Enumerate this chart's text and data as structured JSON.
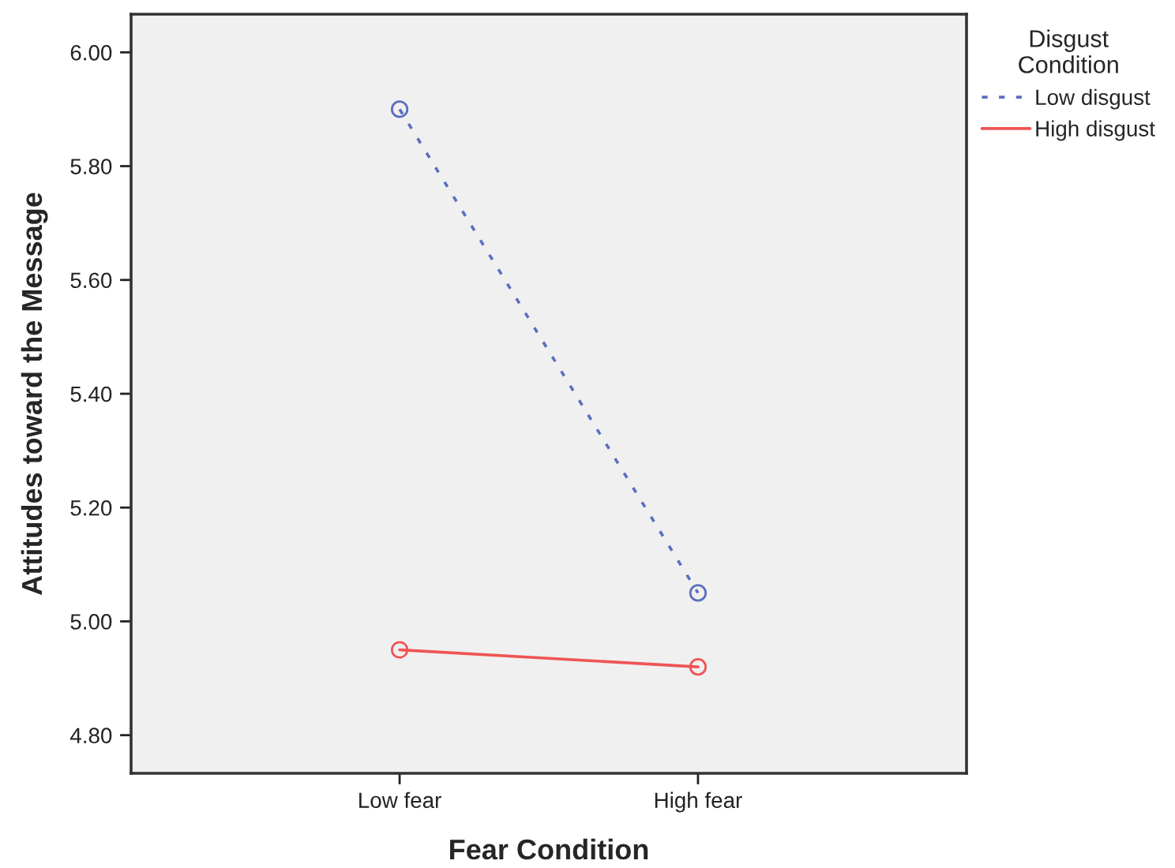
{
  "chart_data": {
    "type": "line",
    "xlabel": "Fear Condition",
    "ylabel": "Attitudes toward the Message",
    "legend_title": "Disgust\nCondition",
    "categories": [
      "Low fear",
      "High fear"
    ],
    "series": [
      {
        "name": "Low disgust",
        "color": "#5b6fc0",
        "values": [
          5.9,
          5.05
        ],
        "line_style": "dotted"
      },
      {
        "name": "High disgust",
        "color": "#f05454",
        "values": [
          4.95,
          4.92
        ],
        "line_style": "solid"
      }
    ],
    "ylim": [
      4.733,
      6.067
    ],
    "yticks": [
      {
        "value": 4.8,
        "label": "4.80"
      },
      {
        "value": 5.0,
        "label": "5.00"
      },
      {
        "value": 5.2,
        "label": "5.20"
      },
      {
        "value": 5.4,
        "label": "5.40"
      },
      {
        "value": 5.6,
        "label": "5.60"
      },
      {
        "value": 5.8,
        "label": "5.80"
      },
      {
        "value": 6.0,
        "label": "6.00"
      }
    ],
    "grid": false,
    "legend": "right",
    "marker": "circle"
  }
}
